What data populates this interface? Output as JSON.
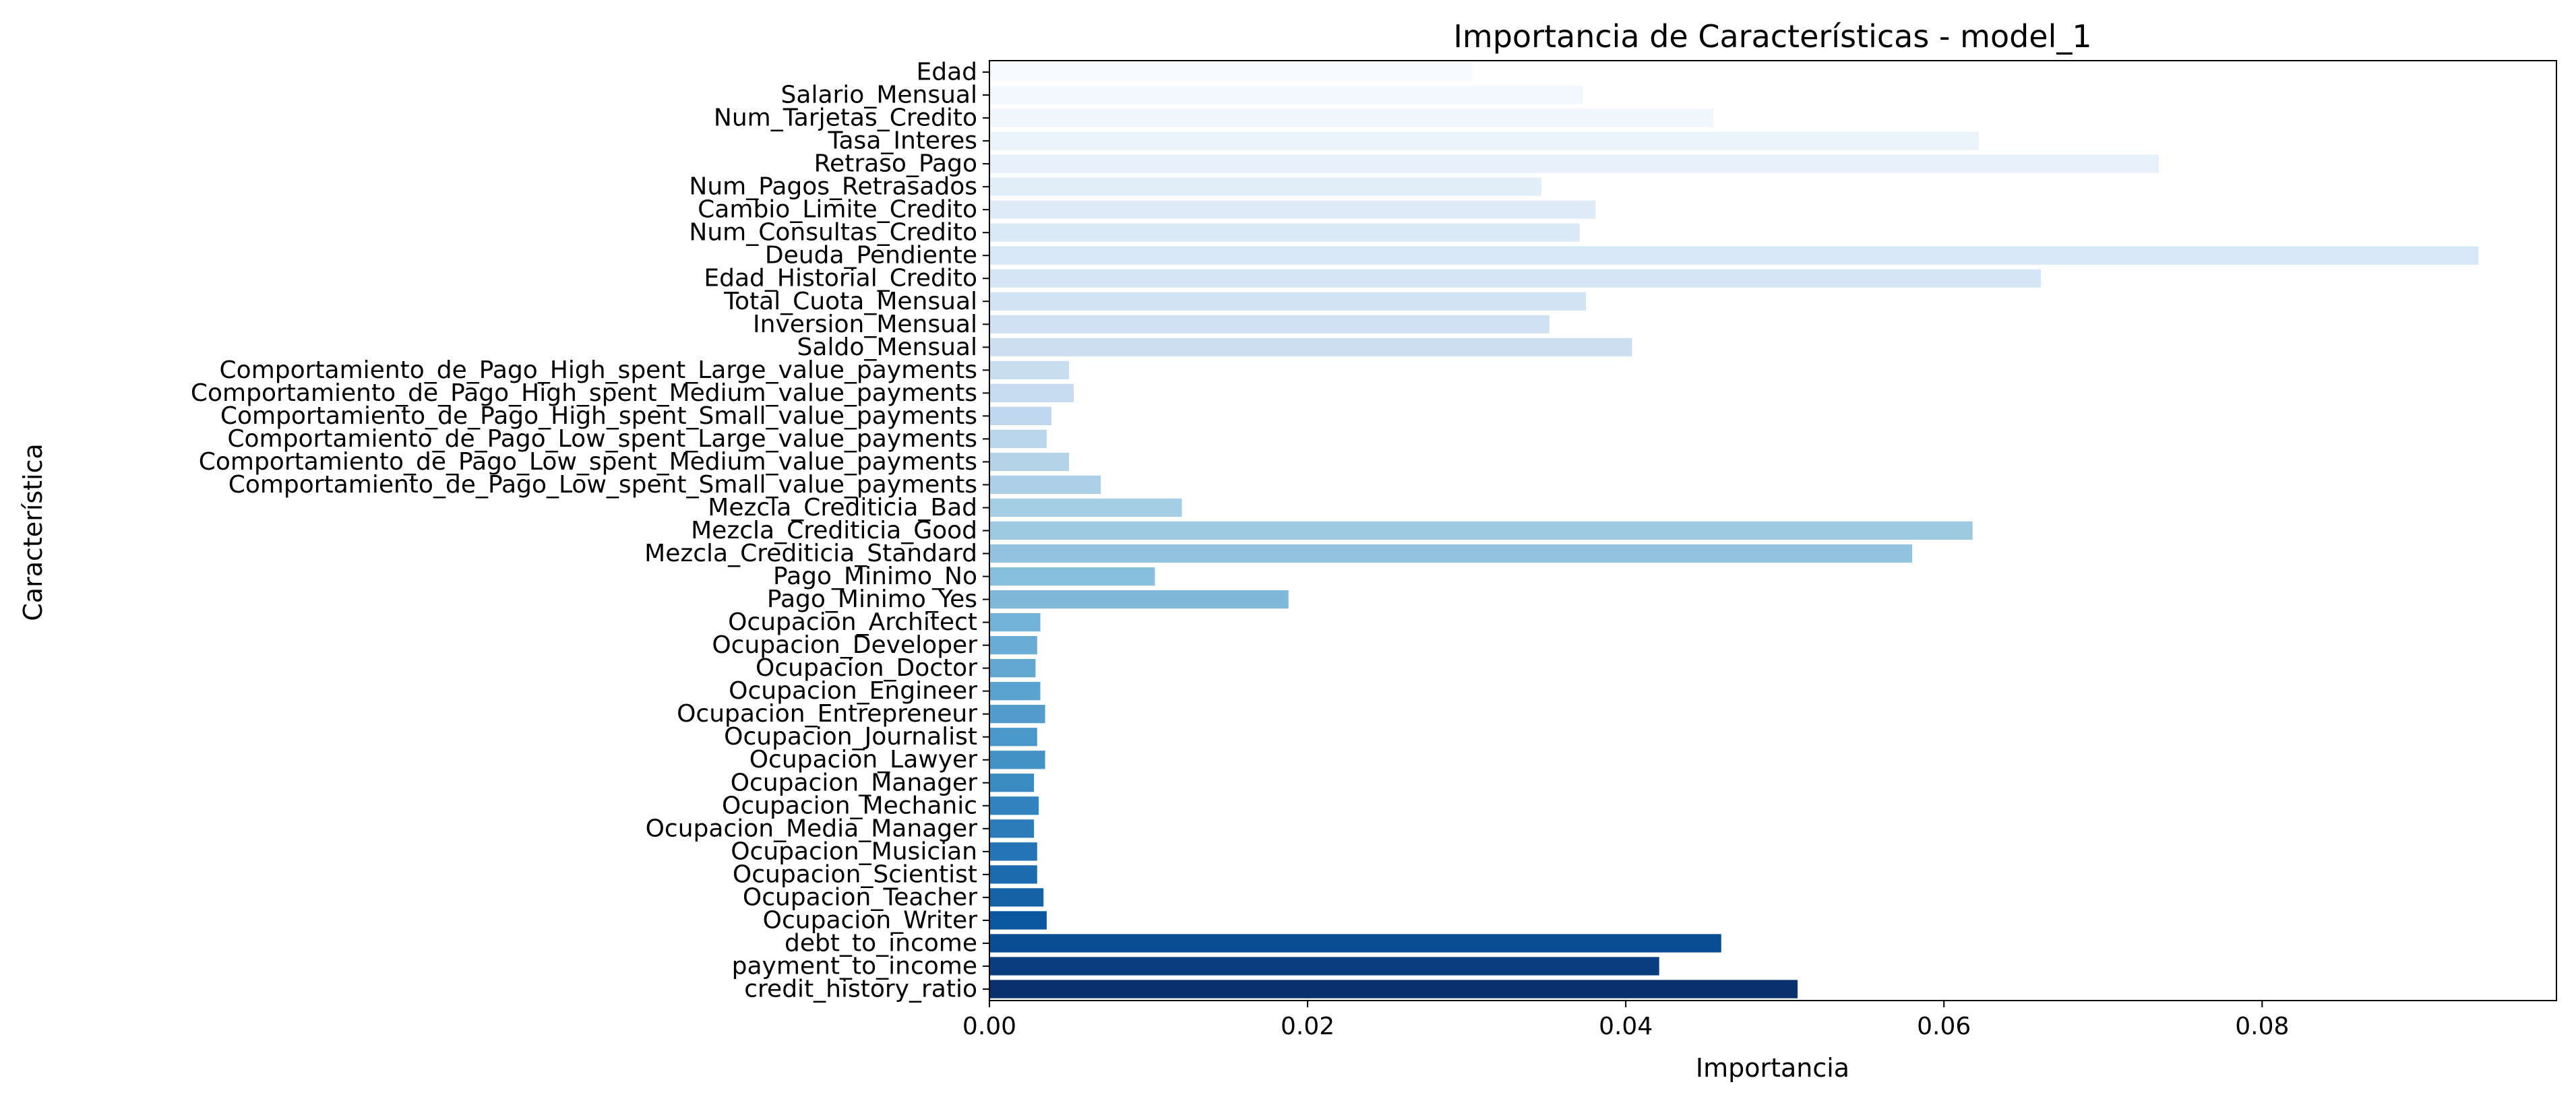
{
  "chart_data": {
    "type": "bar",
    "orientation": "horizontal",
    "title": "Importancia de Características - model_1",
    "xlabel": "Importancia",
    "ylabel": "Característica",
    "xlim": [
      0,
      0.0985
    ],
    "xticks": [
      0.0,
      0.02,
      0.04,
      0.06,
      0.08
    ],
    "xtick_labels": [
      "0.00",
      "0.02",
      "0.04",
      "0.06",
      "0.08"
    ],
    "grid": false,
    "legend": "none",
    "color_scale": {
      "light": "#f7fbff",
      "dark": "#08306b",
      "name": "Blues"
    },
    "categories": [
      "Edad",
      "Salario_Mensual",
      "Num_Tarjetas_Credito",
      "Tasa_Interes",
      "Retraso_Pago",
      "Num_Pagos_Retrasados",
      "Cambio_Limite_Credito",
      "Num_Consultas_Credito",
      "Deuda_Pendiente",
      "Edad_Historial_Credito",
      "Total_Cuota_Mensual",
      "Inversion_Mensual",
      "Saldo_Mensual",
      "Comportamiento_de_Pago_High_spent_Large_value_payments",
      "Comportamiento_de_Pago_High_spent_Medium_value_payments",
      "Comportamiento_de_Pago_High_spent_Small_value_payments",
      "Comportamiento_de_Pago_Low_spent_Large_value_payments",
      "Comportamiento_de_Pago_Low_spent_Medium_value_payments",
      "Comportamiento_de_Pago_Low_spent_Small_value_payments",
      "Mezcla_Crediticia_Bad",
      "Mezcla_Crediticia_Good",
      "Mezcla_Crediticia_Standard",
      "Pago_Minimo_No",
      "Pago_Minimo_Yes",
      "Ocupacion_Architect",
      "Ocupacion_Developer",
      "Ocupacion_Doctor",
      "Ocupacion_Engineer",
      "Ocupacion_Entrepreneur",
      "Ocupacion_Journalist",
      "Ocupacion_Lawyer",
      "Ocupacion_Manager",
      "Ocupacion_Mechanic",
      "Ocupacion_Media_Manager",
      "Ocupacion_Musician",
      "Ocupacion_Scientist",
      "Ocupacion_Teacher",
      "Ocupacion_Writer",
      "debt_to_income",
      "payment_to_income",
      "credit_history_ratio"
    ],
    "values": [
      0.0304,
      0.0373,
      0.0455,
      0.0622,
      0.0735,
      0.0347,
      0.0381,
      0.0371,
      0.0936,
      0.0661,
      0.0375,
      0.0352,
      0.0404,
      0.005,
      0.0053,
      0.0039,
      0.0036,
      0.005,
      0.007,
      0.0121,
      0.0618,
      0.058,
      0.0104,
      0.0188,
      0.0032,
      0.003,
      0.0029,
      0.0032,
      0.0035,
      0.003,
      0.0035,
      0.0028,
      0.0031,
      0.0028,
      0.003,
      0.003,
      0.0034,
      0.0036,
      0.046,
      0.0421,
      0.0508
    ]
  }
}
